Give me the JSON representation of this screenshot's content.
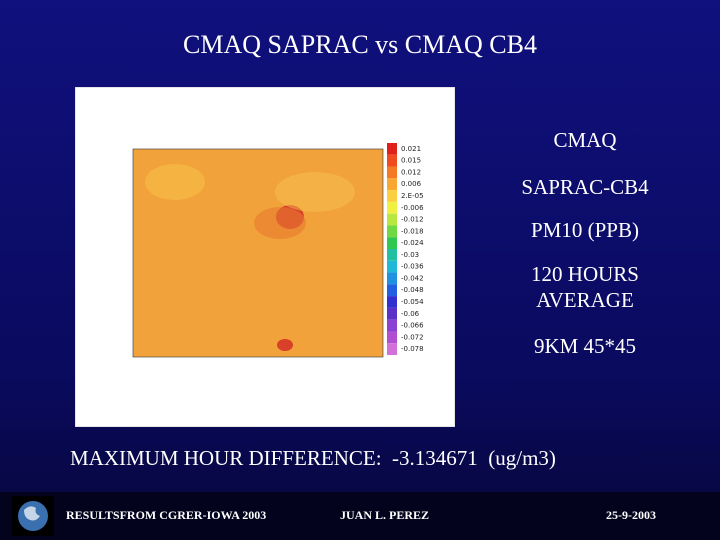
{
  "slide": {
    "title": "CMAQ SAPRAC vs CMAQ CB4",
    "figure": {
      "colorbar_labels": [
        "0.021",
        "0.015",
        "0.012",
        "0.006",
        "2.E-05",
        "-0.006",
        "-0.012",
        "-0.018",
        "-0.024",
        "-0.03",
        "-0.036",
        "-0.042",
        "-0.048",
        "-0.054",
        "-0.06",
        "-0.066",
        "-0.072",
        "-0.078"
      ]
    },
    "side_text": [
      "CMAQ",
      "SAPRAC-CB4",
      "PM10 (PPB)",
      "120 HOURS",
      "AVERAGE",
      "9KM 45*45"
    ],
    "summary": "MAXIMUM HOUR DIFFERENCE:  -3.134671  (ug/m3)",
    "footer": {
      "left": "RESULTSFROM CGRER-IOWA 2003",
      "center": "JUAN L. PEREZ",
      "right": "25-9-2003"
    }
  }
}
